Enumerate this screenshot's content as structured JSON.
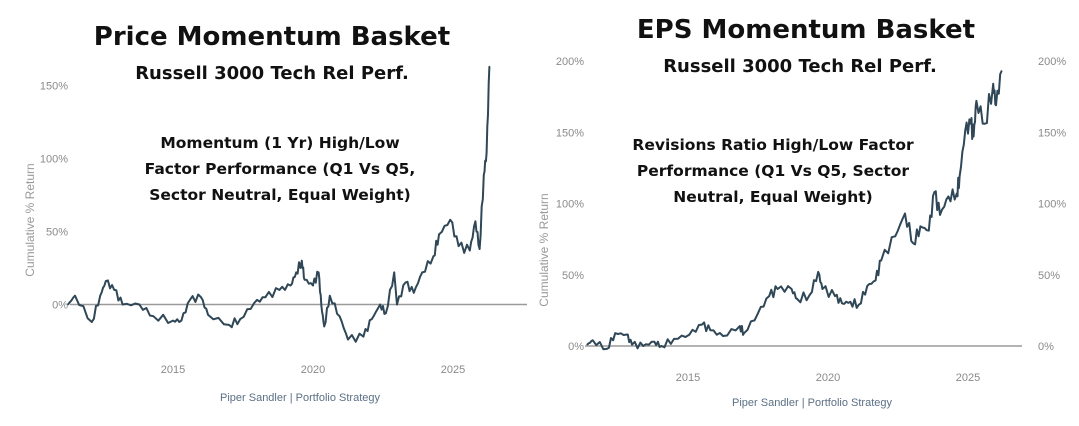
{
  "chart_data": [
    {
      "type": "line",
      "title": "Price Momentum Basket",
      "subtitle": "Russell 3000 Tech Rel Perf.",
      "annotation": [
        "Momentum (1 Yr) High/Low",
        "Factor Performance (Q1 Vs Q5,",
        "Sector Neutral, Equal Weight)"
      ],
      "ylabel": "Cumulative % Return",
      "xlabel": "",
      "source": "Piper Sandler  |  Portfolio Strategy",
      "x_ticks": [
        "2015",
        "2020",
        "2025"
      ],
      "y_ticks": [
        "0%",
        "50%",
        "100%",
        "150%"
      ],
      "ylim": [
        -35,
        165
      ],
      "xlim": [
        2011.2,
        2026.6
      ],
      "line_color": "#2f4756",
      "series": [
        {
          "x": [
            2011.25,
            2011.5,
            2012.1,
            2012.4,
            2012.6,
            2012.9,
            2013.2,
            2013.8,
            2014.3,
            2015.0,
            2015.3,
            2015.6,
            2016.0,
            2016.25,
            2017.0,
            2017.4,
            2017.9,
            2018.3,
            2018.8,
            2019.2,
            2019.4,
            2019.6,
            2019.7,
            2020.0,
            2020.2,
            2020.3,
            2020.4,
            2020.6,
            2020.95,
            2021.25,
            2021.8,
            2022.1,
            2022.4,
            2022.6,
            2022.9,
            2023.0,
            2023.3,
            2023.6,
            2023.9,
            2024.3,
            2024.5,
            2024.9,
            2025.2,
            2025.6,
            2025.8,
            2025.95,
            2026.1,
            2026.2,
            2026.3
          ],
          "y": [
            0,
            6,
            -12,
            6,
            16,
            10,
            0,
            0,
            -8,
            -11,
            -11,
            3,
            5,
            -7,
            -14,
            -10,
            1,
            5,
            10,
            13,
            22,
            30,
            17,
            13,
            22,
            -1,
            -15,
            6,
            -8,
            -24,
            -22,
            -10,
            0,
            -6,
            22,
            0,
            15,
            8,
            22,
            33,
            48,
            58,
            40,
            37,
            57,
            38,
            89,
            104,
            163
          ]
        }
      ]
    },
    {
      "type": "line",
      "title": "EPS Momentum Basket",
      "subtitle": "Russell 3000 Tech Rel Perf.",
      "annotation": [
        "Revisions Ratio High/Low Factor",
        "Performance (Q1 Vs Q5, Sector",
        "Neutral, Equal Weight)"
      ],
      "ylabel": "Cumulative % Return",
      "xlabel": "",
      "source": "Piper Sandler  |  Portfolio Strategy",
      "x_ticks": [
        "2015",
        "2020",
        "2025"
      ],
      "y_ticks": [
        "0%",
        "50%",
        "100%",
        "150%",
        "200%"
      ],
      "ylim": [
        -5,
        205
      ],
      "xlim": [
        2011.3,
        2026.6
      ],
      "line_color": "#2f4756",
      "series": [
        {
          "x": [
            2011.4,
            2011.6,
            2012.1,
            2012.4,
            2012.8,
            2013.0,
            2013.4,
            2013.8,
            2014.05,
            2014.5,
            2015.05,
            2015.5,
            2015.8,
            2016.25,
            2016.85,
            2017.0,
            2017.5,
            2017.9,
            2018.2,
            2018.7,
            2018.9,
            2019.35,
            2019.65,
            2019.8,
            2020.25,
            2020.5,
            2020.8,
            2021.1,
            2021.4,
            2021.7,
            2021.9,
            2022.4,
            2022.75,
            2023.05,
            2023.3,
            2023.6,
            2023.8,
            2024.0,
            2024.3,
            2024.6,
            2024.7,
            2024.9,
            2025.1,
            2025.2,
            2025.3,
            2025.6,
            2025.9,
            2026.0,
            2026.2
          ],
          "y": [
            1,
            4,
            -2,
            9,
            8,
            1,
            0,
            3,
            0,
            5,
            8,
            15,
            11,
            7,
            14,
            9,
            23,
            35,
            40,
            40,
            33,
            36,
            52,
            40,
            35,
            30,
            31,
            29,
            42,
            46,
            60,
            77,
            93,
            72,
            84,
            81,
            108,
            92,
            105,
            107,
            119,
            151,
            156,
            147,
            172,
            156,
            184,
            169,
            193
          ]
        }
      ]
    }
  ]
}
